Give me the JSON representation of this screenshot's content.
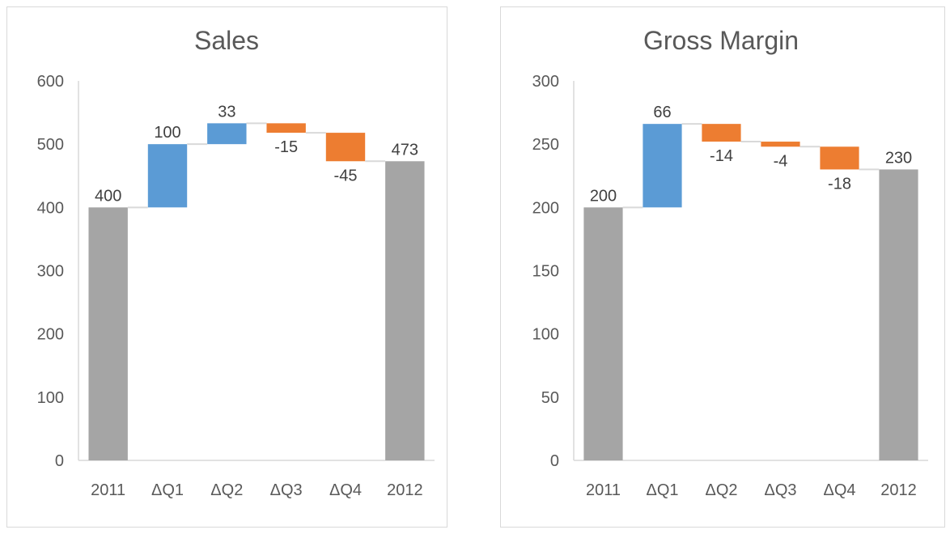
{
  "colors": {
    "total": "#a5a5a5",
    "increase": "#5b9bd5",
    "decrease": "#ed7d31",
    "axis": "#d9d9d9",
    "connector": "#d9d9d9"
  },
  "chart_data": [
    {
      "type": "bar",
      "variant": "waterfall",
      "title": "Sales",
      "categories": [
        "2011",
        "ΔQ1",
        "ΔQ2",
        "ΔQ3",
        "ΔQ4",
        "2012"
      ],
      "values": [
        400,
        100,
        33,
        -15,
        -45,
        473
      ],
      "labels": [
        "400",
        "100",
        "33",
        "-15",
        "-45",
        "473"
      ],
      "kinds": [
        "total",
        "delta",
        "delta",
        "delta",
        "delta",
        "total"
      ],
      "ylim": [
        0,
        600
      ],
      "yticks": [
        0,
        100,
        200,
        300,
        400,
        500,
        600
      ],
      "grid": false,
      "xlabel": "",
      "ylabel": ""
    },
    {
      "type": "bar",
      "variant": "waterfall",
      "title": "Gross Margin",
      "categories": [
        "2011",
        "ΔQ1",
        "ΔQ2",
        "ΔQ3",
        "ΔQ4",
        "2012"
      ],
      "values": [
        200,
        66,
        -14,
        -4,
        -18,
        230
      ],
      "labels": [
        "200",
        "66",
        "-14",
        "-4",
        "-18",
        "230"
      ],
      "kinds": [
        "total",
        "delta",
        "delta",
        "delta",
        "delta",
        "total"
      ],
      "ylim": [
        0,
        300
      ],
      "yticks": [
        0,
        50,
        100,
        150,
        200,
        250,
        300
      ],
      "grid": false,
      "xlabel": "",
      "ylabel": ""
    }
  ]
}
